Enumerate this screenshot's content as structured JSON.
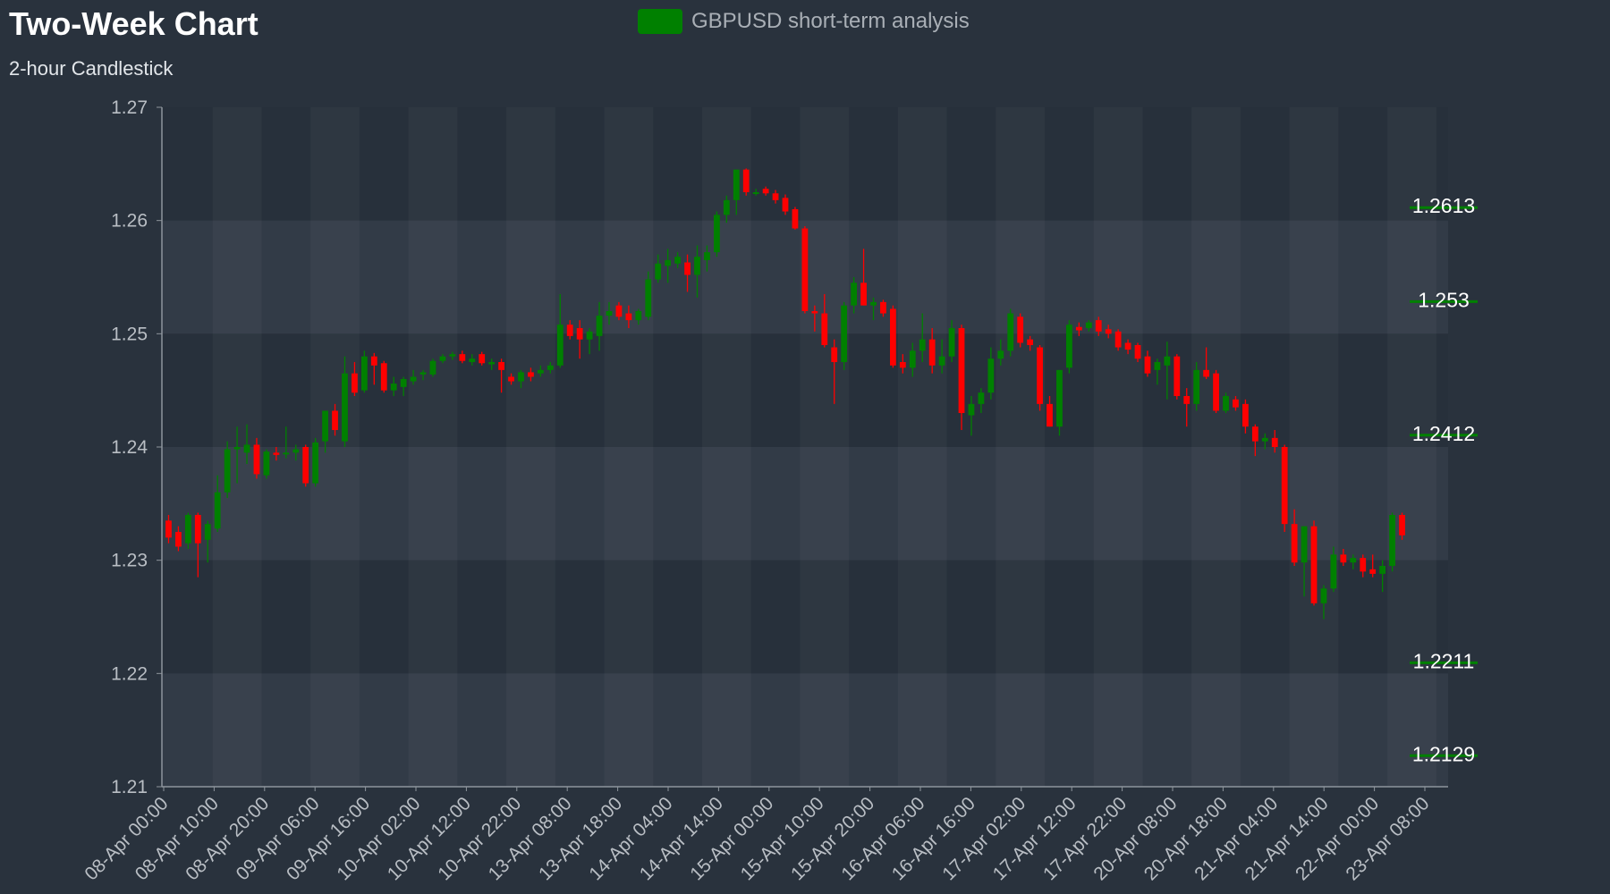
{
  "title": "Two-Week Chart",
  "subtitle": "2-hour Candlestick",
  "legend": {
    "label": "GBPUSD short-term analysis",
    "color": "#008000"
  },
  "colors": {
    "background": "#29323d",
    "up": "#008000",
    "down": "#ff0000",
    "axis_text": "#b9bec4",
    "level_text": "#ffffff"
  },
  "chart_data": {
    "type": "candlestick",
    "title": "Two-Week Chart",
    "subtitle": "2-hour Candlestick",
    "series_name": "GBPUSD short-term analysis",
    "interval": "2h",
    "ylim": [
      1.21,
      1.27
    ],
    "yticks": [
      "1.27",
      "1.26",
      "1.25",
      "1.24",
      "1.23",
      "1.22",
      "1.21"
    ],
    "xtick_labels": [
      "08-Apr 00:00",
      "08-Apr 10:00",
      "08-Apr 20:00",
      "09-Apr 06:00",
      "09-Apr 16:00",
      "10-Apr 02:00",
      "10-Apr 12:00",
      "10-Apr 22:00",
      "13-Apr 08:00",
      "13-Apr 18:00",
      "14-Apr 04:00",
      "14-Apr 14:00",
      "15-Apr 00:00",
      "15-Apr 10:00",
      "15-Apr 20:00",
      "16-Apr 06:00",
      "16-Apr 16:00",
      "17-Apr 02:00",
      "17-Apr 12:00",
      "17-Apr 22:00",
      "20-Apr 08:00",
      "20-Apr 18:00",
      "21-Apr 04:00",
      "21-Apr 14:00",
      "22-Apr 00:00",
      "23-Apr 08:00"
    ],
    "levels": [
      "1.2613",
      "1.253",
      "1.2412",
      "1.2211",
      "1.2129"
    ],
    "grid": "alternating horizontal and vertical bands",
    "legend_position": "top-center",
    "candles": [
      {
        "o": 1.2335,
        "h": 1.234,
        "l": 1.2315,
        "c": 1.232
      },
      {
        "o": 1.2325,
        "h": 1.233,
        "l": 1.2308,
        "c": 1.2312
      },
      {
        "o": 1.2315,
        "h": 1.2342,
        "l": 1.231,
        "c": 1.234
      },
      {
        "o": 1.234,
        "h": 1.2342,
        "l": 1.2285,
        "c": 1.2315
      },
      {
        "o": 1.2318,
        "h": 1.2335,
        "l": 1.2298,
        "c": 1.2332
      },
      {
        "o": 1.2328,
        "h": 1.2375,
        "l": 1.2325,
        "c": 1.236
      },
      {
        "o": 1.236,
        "h": 1.2405,
        "l": 1.2355,
        "c": 1.2398
      },
      {
        "o": 1.2398,
        "h": 1.2418,
        "l": 1.2368,
        "c": 1.24
      },
      {
        "o": 1.2395,
        "h": 1.242,
        "l": 1.2385,
        "c": 1.2402
      },
      {
        "o": 1.2402,
        "h": 1.2408,
        "l": 1.2372,
        "c": 1.2376
      },
      {
        "o": 1.2375,
        "h": 1.2398,
        "l": 1.2372,
        "c": 1.2396
      },
      {
        "o": 1.2395,
        "h": 1.24,
        "l": 1.2388,
        "c": 1.2393
      },
      {
        "o": 1.2395,
        "h": 1.2418,
        "l": 1.239,
        "c": 1.2395
      },
      {
        "o": 1.2395,
        "h": 1.2402,
        "l": 1.2388,
        "c": 1.2398
      },
      {
        "o": 1.24,
        "h": 1.2402,
        "l": 1.2365,
        "c": 1.2368
      },
      {
        "o": 1.2368,
        "h": 1.2408,
        "l": 1.2365,
        "c": 1.2404
      },
      {
        "o": 1.2405,
        "h": 1.243,
        "l": 1.2395,
        "c": 1.2432
      },
      {
        "o": 1.2432,
        "h": 1.2438,
        "l": 1.241,
        "c": 1.2415
      },
      {
        "o": 1.2405,
        "h": 1.248,
        "l": 1.24,
        "c": 1.2465
      },
      {
        "o": 1.2465,
        "h": 1.2475,
        "l": 1.2445,
        "c": 1.2448
      },
      {
        "o": 1.245,
        "h": 1.2485,
        "l": 1.2448,
        "c": 1.248
      },
      {
        "o": 1.248,
        "h": 1.2483,
        "l": 1.2455,
        "c": 1.2472
      },
      {
        "o": 1.2474,
        "h": 1.2476,
        "l": 1.2448,
        "c": 1.245
      },
      {
        "o": 1.245,
        "h": 1.2462,
        "l": 1.2445,
        "c": 1.2456
      },
      {
        "o": 1.2453,
        "h": 1.2462,
        "l": 1.2445,
        "c": 1.246
      },
      {
        "o": 1.2458,
        "h": 1.2468,
        "l": 1.2455,
        "c": 1.2462
      },
      {
        "o": 1.2464,
        "h": 1.2468,
        "l": 1.2459,
        "c": 1.2466
      },
      {
        "o": 1.2464,
        "h": 1.2478,
        "l": 1.2462,
        "c": 1.2476
      },
      {
        "o": 1.2476,
        "h": 1.2482,
        "l": 1.2474,
        "c": 1.248
      },
      {
        "o": 1.248,
        "h": 1.2484,
        "l": 1.2477,
        "c": 1.2482
      },
      {
        "o": 1.2482,
        "h": 1.2485,
        "l": 1.2474,
        "c": 1.2476
      },
      {
        "o": 1.2475,
        "h": 1.2482,
        "l": 1.2472,
        "c": 1.2478
      },
      {
        "o": 1.2482,
        "h": 1.2484,
        "l": 1.2472,
        "c": 1.2474
      },
      {
        "o": 1.2473,
        "h": 1.2478,
        "l": 1.2468,
        "c": 1.2475
      },
      {
        "o": 1.2475,
        "h": 1.2478,
        "l": 1.2448,
        "c": 1.2468
      },
      {
        "o": 1.2462,
        "h": 1.2465,
        "l": 1.2455,
        "c": 1.2458
      },
      {
        "o": 1.2458,
        "h": 1.2468,
        "l": 1.2452,
        "c": 1.2466
      },
      {
        "o": 1.2466,
        "h": 1.247,
        "l": 1.2458,
        "c": 1.2462
      },
      {
        "o": 1.2465,
        "h": 1.2472,
        "l": 1.2462,
        "c": 1.2468
      },
      {
        "o": 1.2468,
        "h": 1.2475,
        "l": 1.2465,
        "c": 1.2472
      },
      {
        "o": 1.2472,
        "h": 1.2535,
        "l": 1.247,
        "c": 1.2508
      },
      {
        "o": 1.2508,
        "h": 1.2512,
        "l": 1.2495,
        "c": 1.2498
      },
      {
        "o": 1.2505,
        "h": 1.2512,
        "l": 1.2478,
        "c": 1.2495
      },
      {
        "o": 1.2495,
        "h": 1.2505,
        "l": 1.2482,
        "c": 1.2502
      },
      {
        "o": 1.2498,
        "h": 1.2528,
        "l": 1.2485,
        "c": 1.2516
      },
      {
        "o": 1.2516,
        "h": 1.2528,
        "l": 1.2508,
        "c": 1.252
      },
      {
        "o": 1.2525,
        "h": 1.2528,
        "l": 1.2512,
        "c": 1.2515
      },
      {
        "o": 1.2518,
        "h": 1.2525,
        "l": 1.2505,
        "c": 1.2512
      },
      {
        "o": 1.2512,
        "h": 1.2522,
        "l": 1.2508,
        "c": 1.252
      },
      {
        "o": 1.2515,
        "h": 1.2555,
        "l": 1.2512,
        "c": 1.2548
      },
      {
        "o": 1.2548,
        "h": 1.257,
        "l": 1.2545,
        "c": 1.2562
      },
      {
        "o": 1.256,
        "h": 1.2575,
        "l": 1.2545,
        "c": 1.2565
      },
      {
        "o": 1.2562,
        "h": 1.2572,
        "l": 1.2558,
        "c": 1.2568
      },
      {
        "o": 1.2563,
        "h": 1.257,
        "l": 1.2537,
        "c": 1.2552
      },
      {
        "o": 1.2552,
        "h": 1.2578,
        "l": 1.2532,
        "c": 1.2568
      },
      {
        "o": 1.2565,
        "h": 1.2578,
        "l": 1.2555,
        "c": 1.2572
      },
      {
        "o": 1.2572,
        "h": 1.2608,
        "l": 1.2568,
        "c": 1.2605
      },
      {
        "o": 1.2605,
        "h": 1.2622,
        "l": 1.2598,
        "c": 1.2618
      },
      {
        "o": 1.2618,
        "h": 1.2645,
        "l": 1.2605,
        "c": 1.2645
      },
      {
        "o": 1.2645,
        "h": 1.2646,
        "l": 1.2622,
        "c": 1.2625
      },
      {
        "o": 1.2625,
        "h": 1.2628,
        "l": 1.2622,
        "c": 1.2625
      },
      {
        "o": 1.2628,
        "h": 1.263,
        "l": 1.2622,
        "c": 1.2624
      },
      {
        "o": 1.2624,
        "h": 1.2627,
        "l": 1.2615,
        "c": 1.2618
      },
      {
        "o": 1.262,
        "h": 1.2623,
        "l": 1.2605,
        "c": 1.2608
      },
      {
        "o": 1.261,
        "h": 1.2612,
        "l": 1.2592,
        "c": 1.2593
      },
      {
        "o": 1.2593,
        "h": 1.2595,
        "l": 1.2518,
        "c": 1.252
      },
      {
        "o": 1.252,
        "h": 1.2525,
        "l": 1.2502,
        "c": 1.2518
      },
      {
        "o": 1.2518,
        "h": 1.2535,
        "l": 1.2488,
        "c": 1.249
      },
      {
        "o": 1.2488,
        "h": 1.2495,
        "l": 1.2438,
        "c": 1.2475
      },
      {
        "o": 1.2475,
        "h": 1.2528,
        "l": 1.2468,
        "c": 1.2525
      },
      {
        "o": 1.2525,
        "h": 1.255,
        "l": 1.2518,
        "c": 1.2545
      },
      {
        "o": 1.2545,
        "h": 1.2575,
        "l": 1.2525,
        "c": 1.2525
      },
      {
        "o": 1.2525,
        "h": 1.2532,
        "l": 1.2512,
        "c": 1.2528
      },
      {
        "o": 1.2528,
        "h": 1.253,
        "l": 1.2515,
        "c": 1.2518
      },
      {
        "o": 1.2522,
        "h": 1.2525,
        "l": 1.247,
        "c": 1.2472
      },
      {
        "o": 1.2475,
        "h": 1.2482,
        "l": 1.2465,
        "c": 1.247
      },
      {
        "o": 1.247,
        "h": 1.2492,
        "l": 1.2462,
        "c": 1.2485
      },
      {
        "o": 1.2485,
        "h": 1.2518,
        "l": 1.2475,
        "c": 1.2495
      },
      {
        "o": 1.2495,
        "h": 1.2505,
        "l": 1.2465,
        "c": 1.2472
      },
      {
        "o": 1.2472,
        "h": 1.2495,
        "l": 1.2465,
        "c": 1.248
      },
      {
        "o": 1.248,
        "h": 1.2512,
        "l": 1.2475,
        "c": 1.2505
      },
      {
        "o": 1.2505,
        "h": 1.2508,
        "l": 1.2415,
        "c": 1.243
      },
      {
        "o": 1.2428,
        "h": 1.2445,
        "l": 1.241,
        "c": 1.2438
      },
      {
        "o": 1.2438,
        "h": 1.2452,
        "l": 1.243,
        "c": 1.2448
      },
      {
        "o": 1.2448,
        "h": 1.2488,
        "l": 1.2442,
        "c": 1.2478
      },
      {
        "o": 1.2478,
        "h": 1.2495,
        "l": 1.2472,
        "c": 1.2485
      },
      {
        "o": 1.2485,
        "h": 1.2522,
        "l": 1.248,
        "c": 1.2518
      },
      {
        "o": 1.2515,
        "h": 1.2518,
        "l": 1.2488,
        "c": 1.2492
      },
      {
        "o": 1.2495,
        "h": 1.2498,
        "l": 1.2485,
        "c": 1.249
      },
      {
        "o": 1.2488,
        "h": 1.249,
        "l": 1.2432,
        "c": 1.2438
      },
      {
        "o": 1.2438,
        "h": 1.2445,
        "l": 1.2418,
        "c": 1.2418
      },
      {
        "o": 1.2418,
        "h": 1.2468,
        "l": 1.241,
        "c": 1.2468
      },
      {
        "o": 1.247,
        "h": 1.2512,
        "l": 1.2465,
        "c": 1.2508
      },
      {
        "o": 1.2506,
        "h": 1.251,
        "l": 1.2498,
        "c": 1.2503
      },
      {
        "o": 1.2505,
        "h": 1.2512,
        "l": 1.2502,
        "c": 1.251
      },
      {
        "o": 1.2512,
        "h": 1.2515,
        "l": 1.2498,
        "c": 1.2502
      },
      {
        "o": 1.2504,
        "h": 1.2508,
        "l": 1.2496,
        "c": 1.25
      },
      {
        "o": 1.2502,
        "h": 1.2504,
        "l": 1.2485,
        "c": 1.2488
      },
      {
        "o": 1.2492,
        "h": 1.2495,
        "l": 1.2482,
        "c": 1.2486
      },
      {
        "o": 1.249,
        "h": 1.2492,
        "l": 1.2475,
        "c": 1.2478
      },
      {
        "o": 1.248,
        "h": 1.2485,
        "l": 1.2462,
        "c": 1.2465
      },
      {
        "o": 1.2468,
        "h": 1.2478,
        "l": 1.2455,
        "c": 1.2475
      },
      {
        "o": 1.2472,
        "h": 1.2493,
        "l": 1.2442,
        "c": 1.248
      },
      {
        "o": 1.248,
        "h": 1.2482,
        "l": 1.2442,
        "c": 1.2445
      },
      {
        "o": 1.2445,
        "h": 1.2452,
        "l": 1.2418,
        "c": 1.2438
      },
      {
        "o": 1.2438,
        "h": 1.2475,
        "l": 1.2432,
        "c": 1.2468
      },
      {
        "o": 1.2468,
        "h": 1.2488,
        "l": 1.246,
        "c": 1.2462
      },
      {
        "o": 1.2465,
        "h": 1.2468,
        "l": 1.243,
        "c": 1.2432
      },
      {
        "o": 1.2432,
        "h": 1.2448,
        "l": 1.243,
        "c": 1.2445
      },
      {
        "o": 1.2442,
        "h": 1.2445,
        "l": 1.2432,
        "c": 1.2435
      },
      {
        "o": 1.2438,
        "h": 1.2442,
        "l": 1.2412,
        "c": 1.2418
      },
      {
        "o": 1.2418,
        "h": 1.242,
        "l": 1.2392,
        "c": 1.2405
      },
      {
        "o": 1.2405,
        "h": 1.2412,
        "l": 1.2398,
        "c": 1.2408
      },
      {
        "o": 1.2408,
        "h": 1.2415,
        "l": 1.2395,
        "c": 1.24
      },
      {
        "o": 1.24,
        "h": 1.2402,
        "l": 1.2325,
        "c": 1.2332
      },
      {
        "o": 1.2332,
        "h": 1.2345,
        "l": 1.2295,
        "c": 1.2298
      },
      {
        "o": 1.2298,
        "h": 1.233,
        "l": 1.2268,
        "c": 1.233
      },
      {
        "o": 1.233,
        "h": 1.2335,
        "l": 1.226,
        "c": 1.2262
      },
      {
        "o": 1.2262,
        "h": 1.2278,
        "l": 1.2248,
        "c": 1.2275
      },
      {
        "o": 1.2275,
        "h": 1.2312,
        "l": 1.2272,
        "c": 1.2305
      },
      {
        "o": 1.2305,
        "h": 1.231,
        "l": 1.2295,
        "c": 1.2298
      },
      {
        "o": 1.2298,
        "h": 1.2305,
        "l": 1.2292,
        "c": 1.2302
      },
      {
        "o": 1.2302,
        "h": 1.2305,
        "l": 1.2285,
        "c": 1.229
      },
      {
        "o": 1.2292,
        "h": 1.2305,
        "l": 1.2285,
        "c": 1.2288
      },
      {
        "o": 1.2288,
        "h": 1.23,
        "l": 1.2272,
        "c": 1.2295
      },
      {
        "o": 1.2295,
        "h": 1.2342,
        "l": 1.229,
        "c": 1.234
      },
      {
        "o": 1.234,
        "h": 1.2342,
        "l": 1.2318,
        "c": 1.2322
      }
    ]
  }
}
